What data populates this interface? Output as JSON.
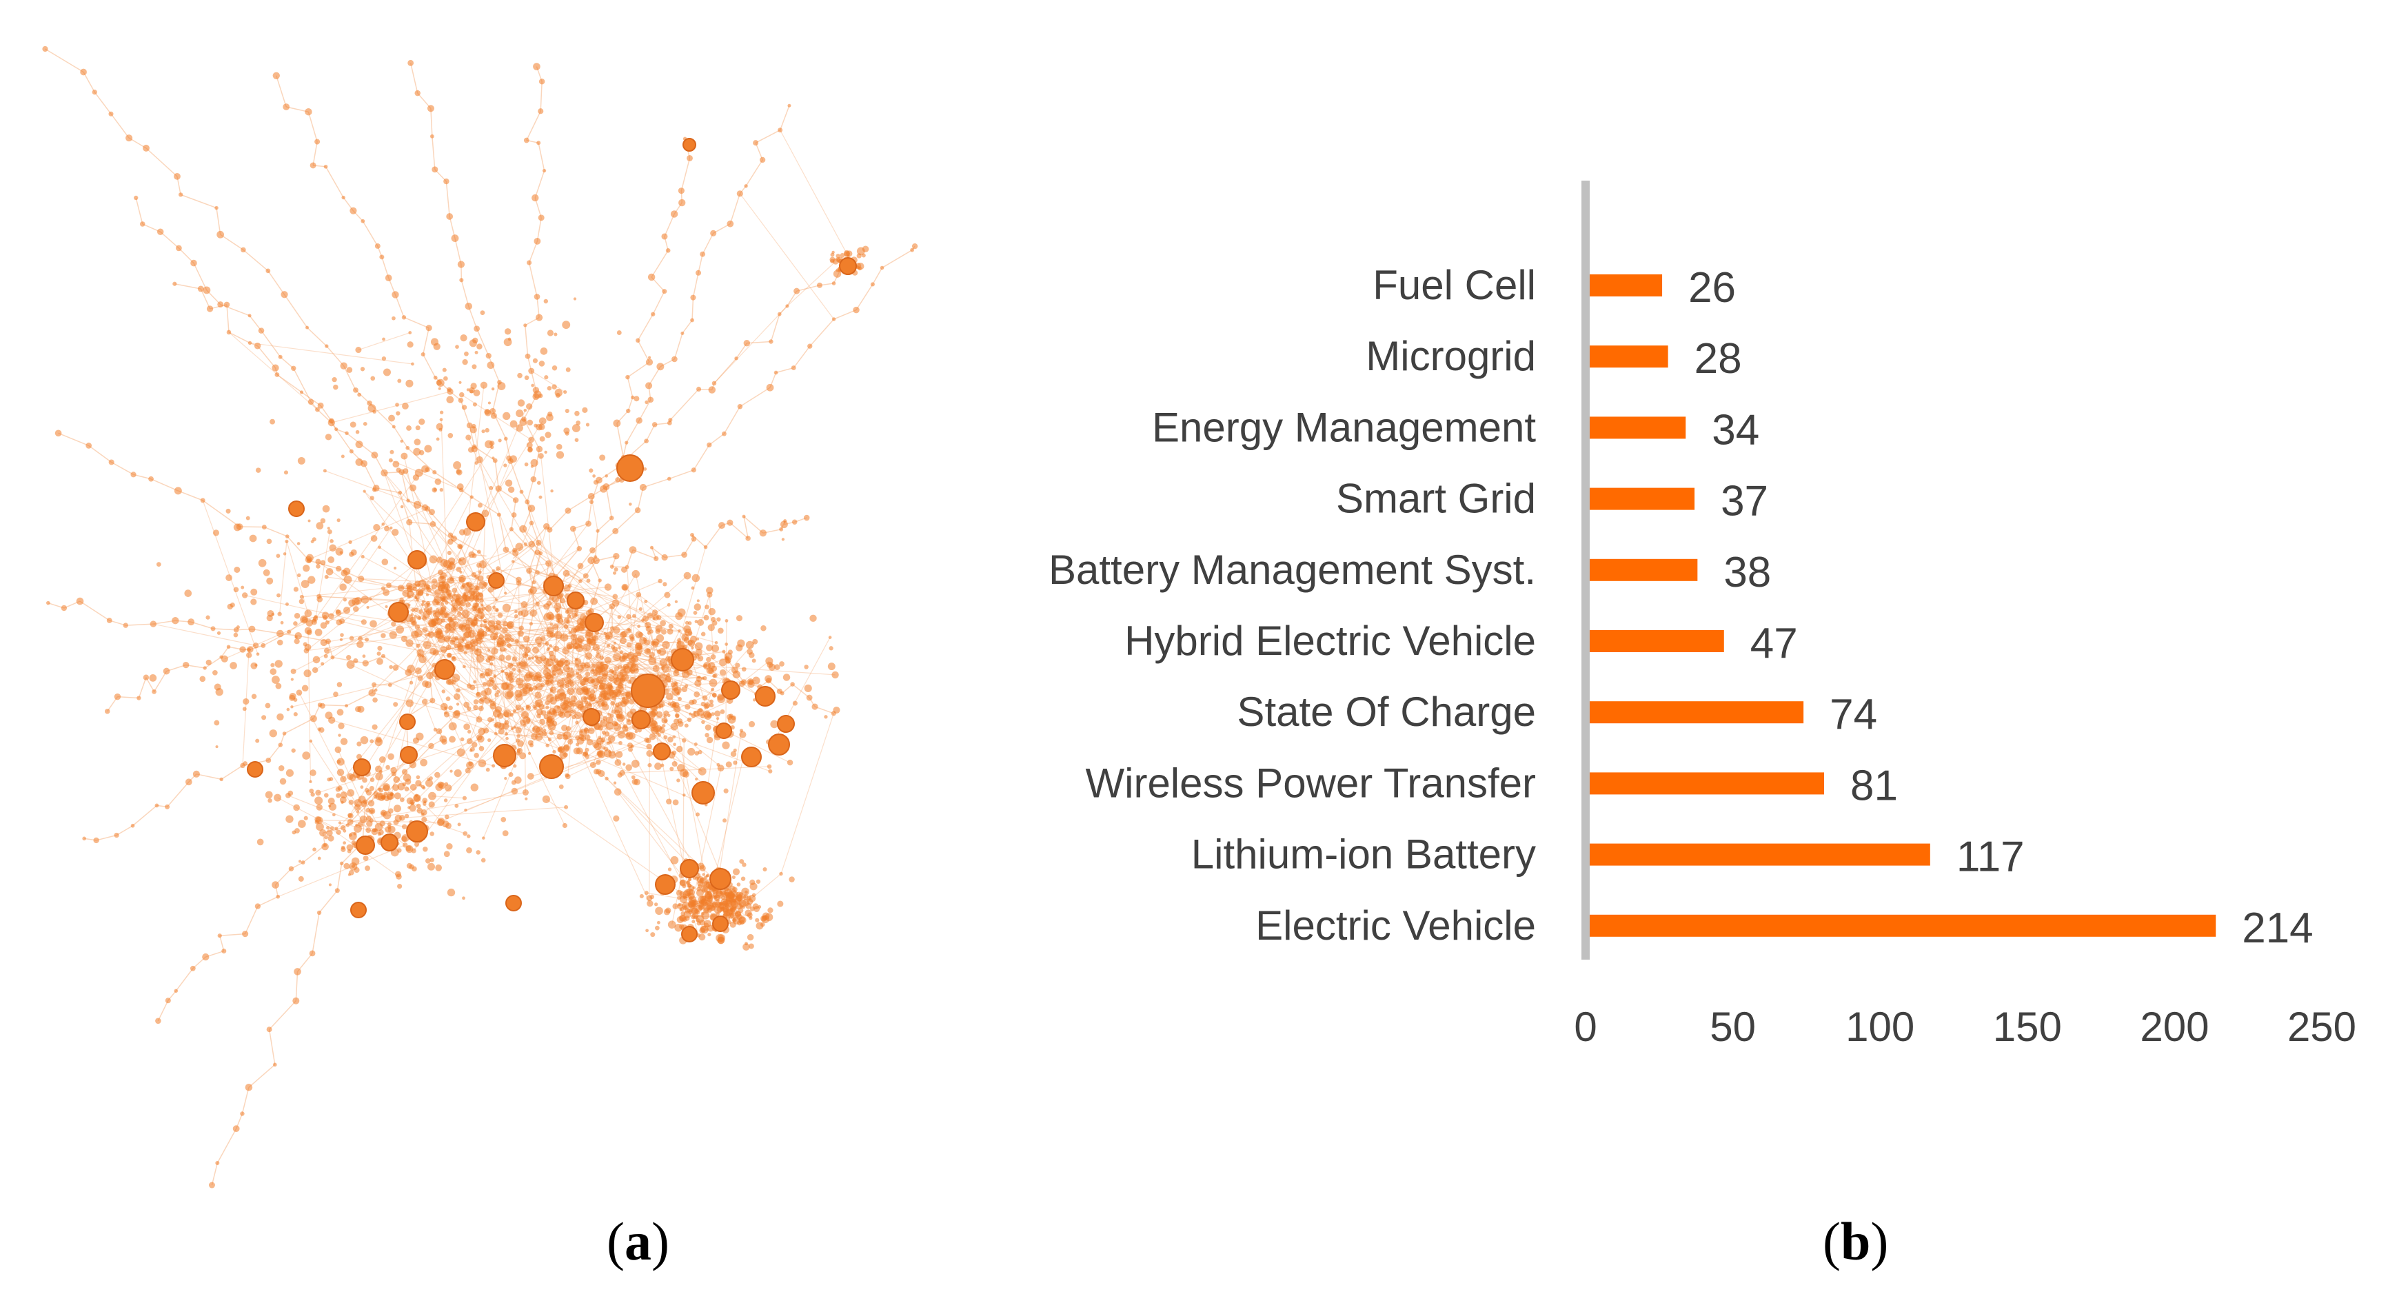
{
  "panels": {
    "a": {
      "letter": "a"
    },
    "b": {
      "letter": "b"
    }
  },
  "colors": {
    "bar": "#ff6a00",
    "node": "#f07e2a",
    "edge": "#f3a36a",
    "axis_line": "#c0c0c0",
    "text": "#404040"
  },
  "chart_data": [
    {
      "type": "network",
      "panel": "a",
      "description_visible": false,
      "node_color": "#f07e2a"
    },
    {
      "type": "bar",
      "orientation": "horizontal",
      "panel": "b",
      "title": "",
      "xlabel": "",
      "ylabel": "",
      "xlim": [
        0,
        250
      ],
      "xticks": [
        0,
        50,
        100,
        150,
        200,
        250
      ],
      "grid": false,
      "categories": [
        "Fuel Cell",
        "Microgrid",
        "Energy Management",
        "Smart Grid",
        "Battery Management Syst.",
        "Hybrid Electric Vehicle",
        "State Of Charge",
        "Wireless Power Transfer",
        "Lithium-ion Battery",
        "Electric Vehicle"
      ],
      "values": [
        26,
        28,
        34,
        37,
        38,
        47,
        74,
        81,
        117,
        214
      ]
    }
  ]
}
